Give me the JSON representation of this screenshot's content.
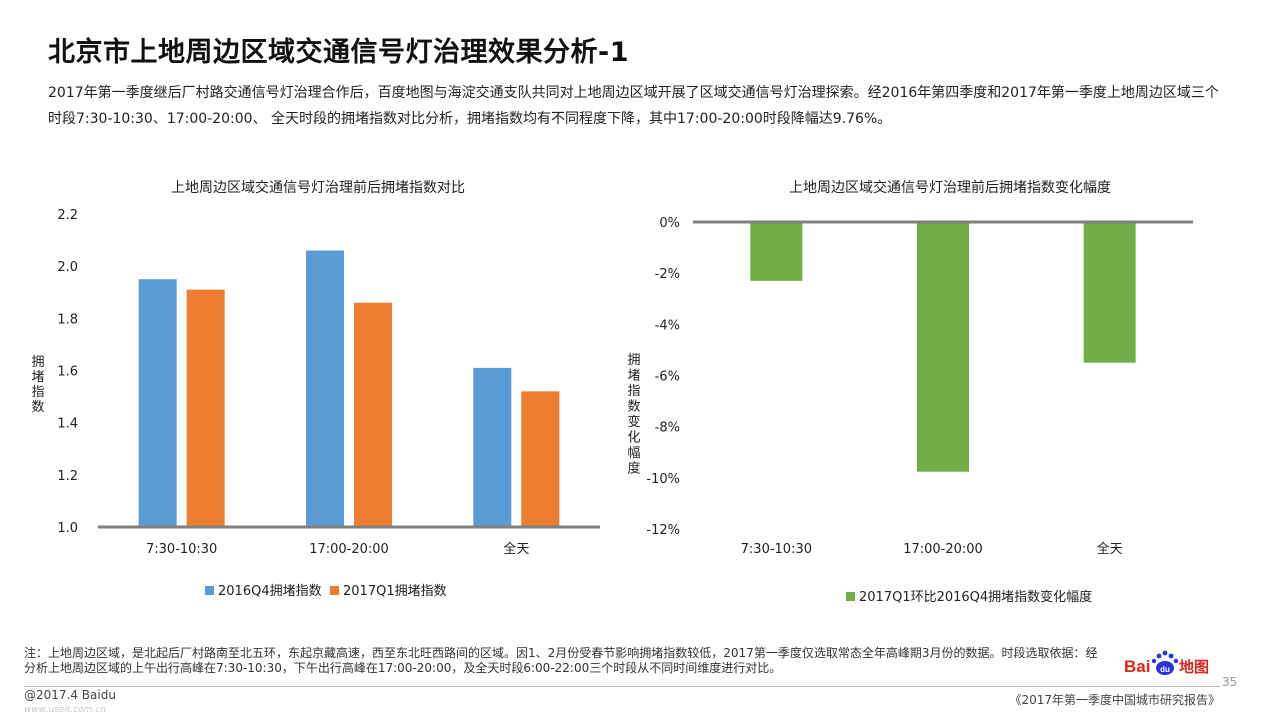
{
  "page": {
    "title": "北京市上地周边区域交通信号灯治理效果分析-1",
    "intro": "2017年第一季度继后厂村路交通信号灯治理合作后，百度地图与海淀交通支队共同对上地周边区域开展了区域交通信号灯治理探索。经2016年第四季度和2017年第一季度上地周边区域三个时段7:30-10:30、17:00-20:00、 全天时段的拥堵指数对比分析，拥堵指数均有不同程度下降，其中17:00-20:00时段降幅达9.76%。",
    "note": "注：上地周边区域，是北起后厂村路南至北五环，东起京藏高速，西至东北旺西路间的区域。因1、2月份受春节影响拥堵指数较低，2017第一季度仅选取常态全年高峰期3月份的数据。时段选取依据：经分析上地周边区域的上午出行高峰在7:30-10:30，下午出行高峰在17:00-20:00，及全天时段6:00-22:00三个时段从不同时间维度进行对比。",
    "logo": {
      "text_bai": "Bai",
      "text_du": "du",
      "text_map": "地图"
    },
    "page_number": "35",
    "footer_left": "@2017.4 Baidu",
    "footer_right": "《2017年第一季度中国城市研究报告》",
    "watermark": "www.useit.com.cn"
  },
  "colors": {
    "blue": "#5B9BD5",
    "orange": "#ED7D31",
    "green": "#70AD47",
    "axis": "#808080"
  },
  "chart_data": [
    {
      "type": "bar",
      "title": "上地周边区域交通信号灯治理前后拥堵指数对比",
      "categories": [
        "7:30-10:30",
        "17:00-20:00",
        "全天"
      ],
      "series": [
        {
          "name": "2016Q4拥堵指数",
          "values": [
            1.95,
            2.06,
            1.61
          ],
          "color": "#5B9BD5"
        },
        {
          "name": "2017Q1拥堵指数",
          "values": [
            1.91,
            1.86,
            1.52
          ],
          "color": "#ED7D31"
        }
      ],
      "ylabel": "拥堵指数",
      "ylim": [
        1.0,
        2.2
      ],
      "yticks": [
        "1.0",
        "1.2",
        "1.4",
        "1.6",
        "1.8",
        "2.0",
        "2.2"
      ],
      "legend_position": "bottom",
      "grid": false
    },
    {
      "type": "bar",
      "title": "上地周边区域交通信号灯治理前后拥堵指数变化幅度",
      "categories": [
        "7:30-10:30",
        "17:00-20:00",
        "全天"
      ],
      "series": [
        {
          "name": "2017Q1环比2016Q4拥堵指数变化幅度",
          "values": [
            -2.3,
            -9.76,
            -5.5
          ],
          "color": "#70AD47"
        }
      ],
      "ylabel": "拥堵指数变化幅度",
      "ylim": [
        -12,
        0
      ],
      "yticks": [
        "0%",
        "-2%",
        "-4%",
        "-6%",
        "-8%",
        "-10%",
        "-12%"
      ],
      "legend_position": "bottom",
      "grid": false
    }
  ]
}
